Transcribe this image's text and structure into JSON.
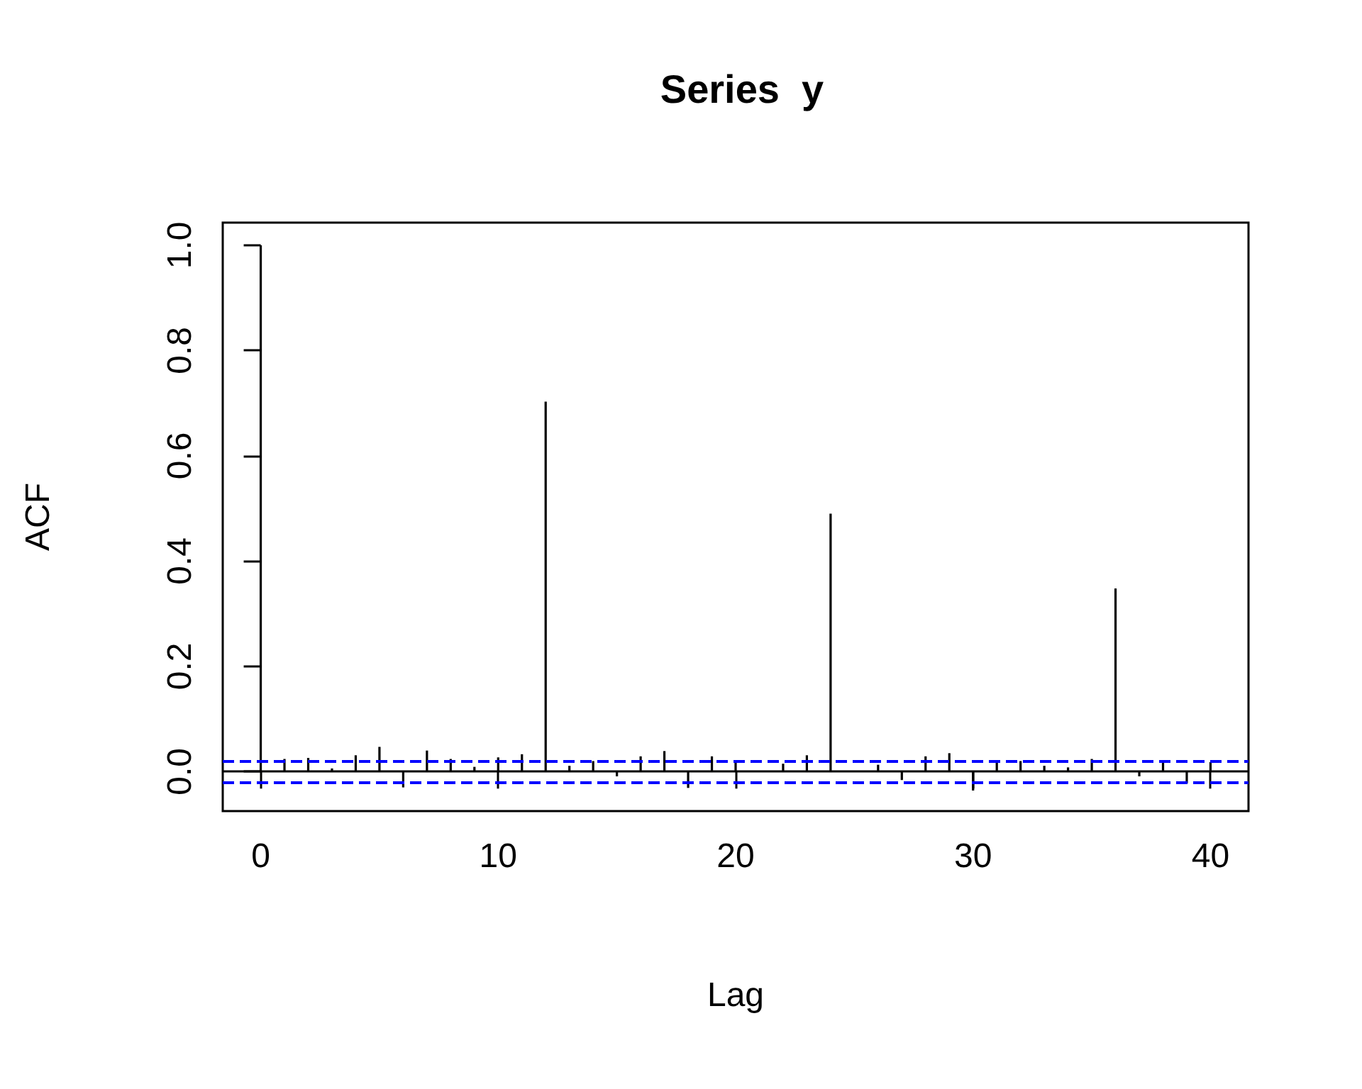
{
  "chart_data": {
    "type": "bar",
    "title": "Series  y",
    "xlabel": "Lag",
    "ylabel": "ACF",
    "x": [
      0,
      1,
      2,
      3,
      4,
      5,
      6,
      7,
      8,
      9,
      10,
      11,
      12,
      13,
      14,
      15,
      16,
      17,
      18,
      19,
      20,
      21,
      22,
      23,
      24,
      25,
      26,
      27,
      28,
      29,
      30,
      31,
      32,
      33,
      34,
      35,
      36,
      37,
      38,
      39,
      40
    ],
    "values": [
      1.0,
      0.024,
      0.026,
      0.006,
      0.031,
      0.047,
      -0.03,
      0.04,
      0.024,
      0.009,
      0.027,
      0.033,
      0.703,
      0.011,
      0.02,
      -0.009,
      0.029,
      0.039,
      -0.031,
      0.029,
      0.02,
      null,
      0.015,
      0.031,
      0.49,
      null,
      0.013,
      -0.016,
      0.029,
      0.035,
      -0.036,
      0.02,
      0.02,
      0.011,
      0.008,
      0.024,
      0.348,
      -0.009,
      0.02,
      -0.022,
      0.018
    ],
    "color": "#000000",
    "xlim": [
      -1.6,
      41.6
    ],
    "ylim": [
      -0.075,
      1.043
    ],
    "xticks": [
      0,
      10,
      20,
      30,
      40
    ],
    "yticks": [
      {
        "value": 0,
        "label": "0.0"
      },
      {
        "value": 0.2,
        "label": "0.2"
      },
      {
        "value": 0.4,
        "label": "0.4"
      },
      {
        "value": 0.6,
        "label": "0.6"
      },
      {
        "value": 0.8,
        "label": "0.8"
      },
      {
        "value": 1,
        "label": "1.0"
      }
    ],
    "ref_lines": [
      {
        "axis": "y",
        "value": 0,
        "color": "#000000",
        "line_style": "solid"
      },
      {
        "axis": "y",
        "value": 0.019,
        "color": "#0000ff",
        "line_style": "dashed"
      },
      {
        "axis": "y",
        "value": -0.019,
        "color": "#0000ff",
        "line_style": "dashed"
      }
    ],
    "grid": false
  }
}
